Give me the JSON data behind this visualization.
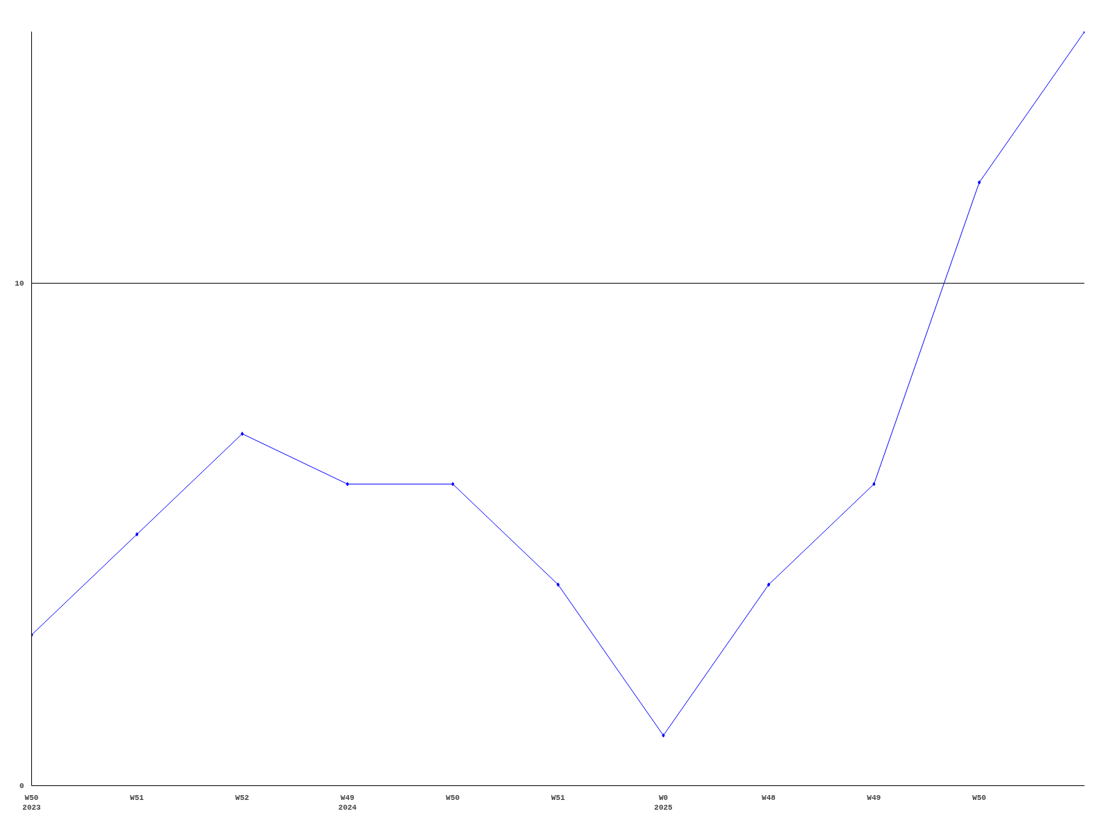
{
  "chart_data": {
    "type": "line",
    "categories": [
      "W50\n2023",
      "W51",
      "W52",
      "W49\n2024",
      "W50",
      "W51",
      "W0\n2025",
      "W48",
      "W49",
      "W50",
      null
    ],
    "series": [
      {
        "color": "#0000ff",
        "values": [
          3,
          5,
          7,
          6,
          6,
          4,
          1,
          4,
          6,
          12,
          15
        ]
      }
    ],
    "ylim": [
      0,
      15
    ],
    "yticks": [
      0,
      10
    ],
    "grid": "y",
    "marker": "diamond",
    "line_style": "solid"
  }
}
